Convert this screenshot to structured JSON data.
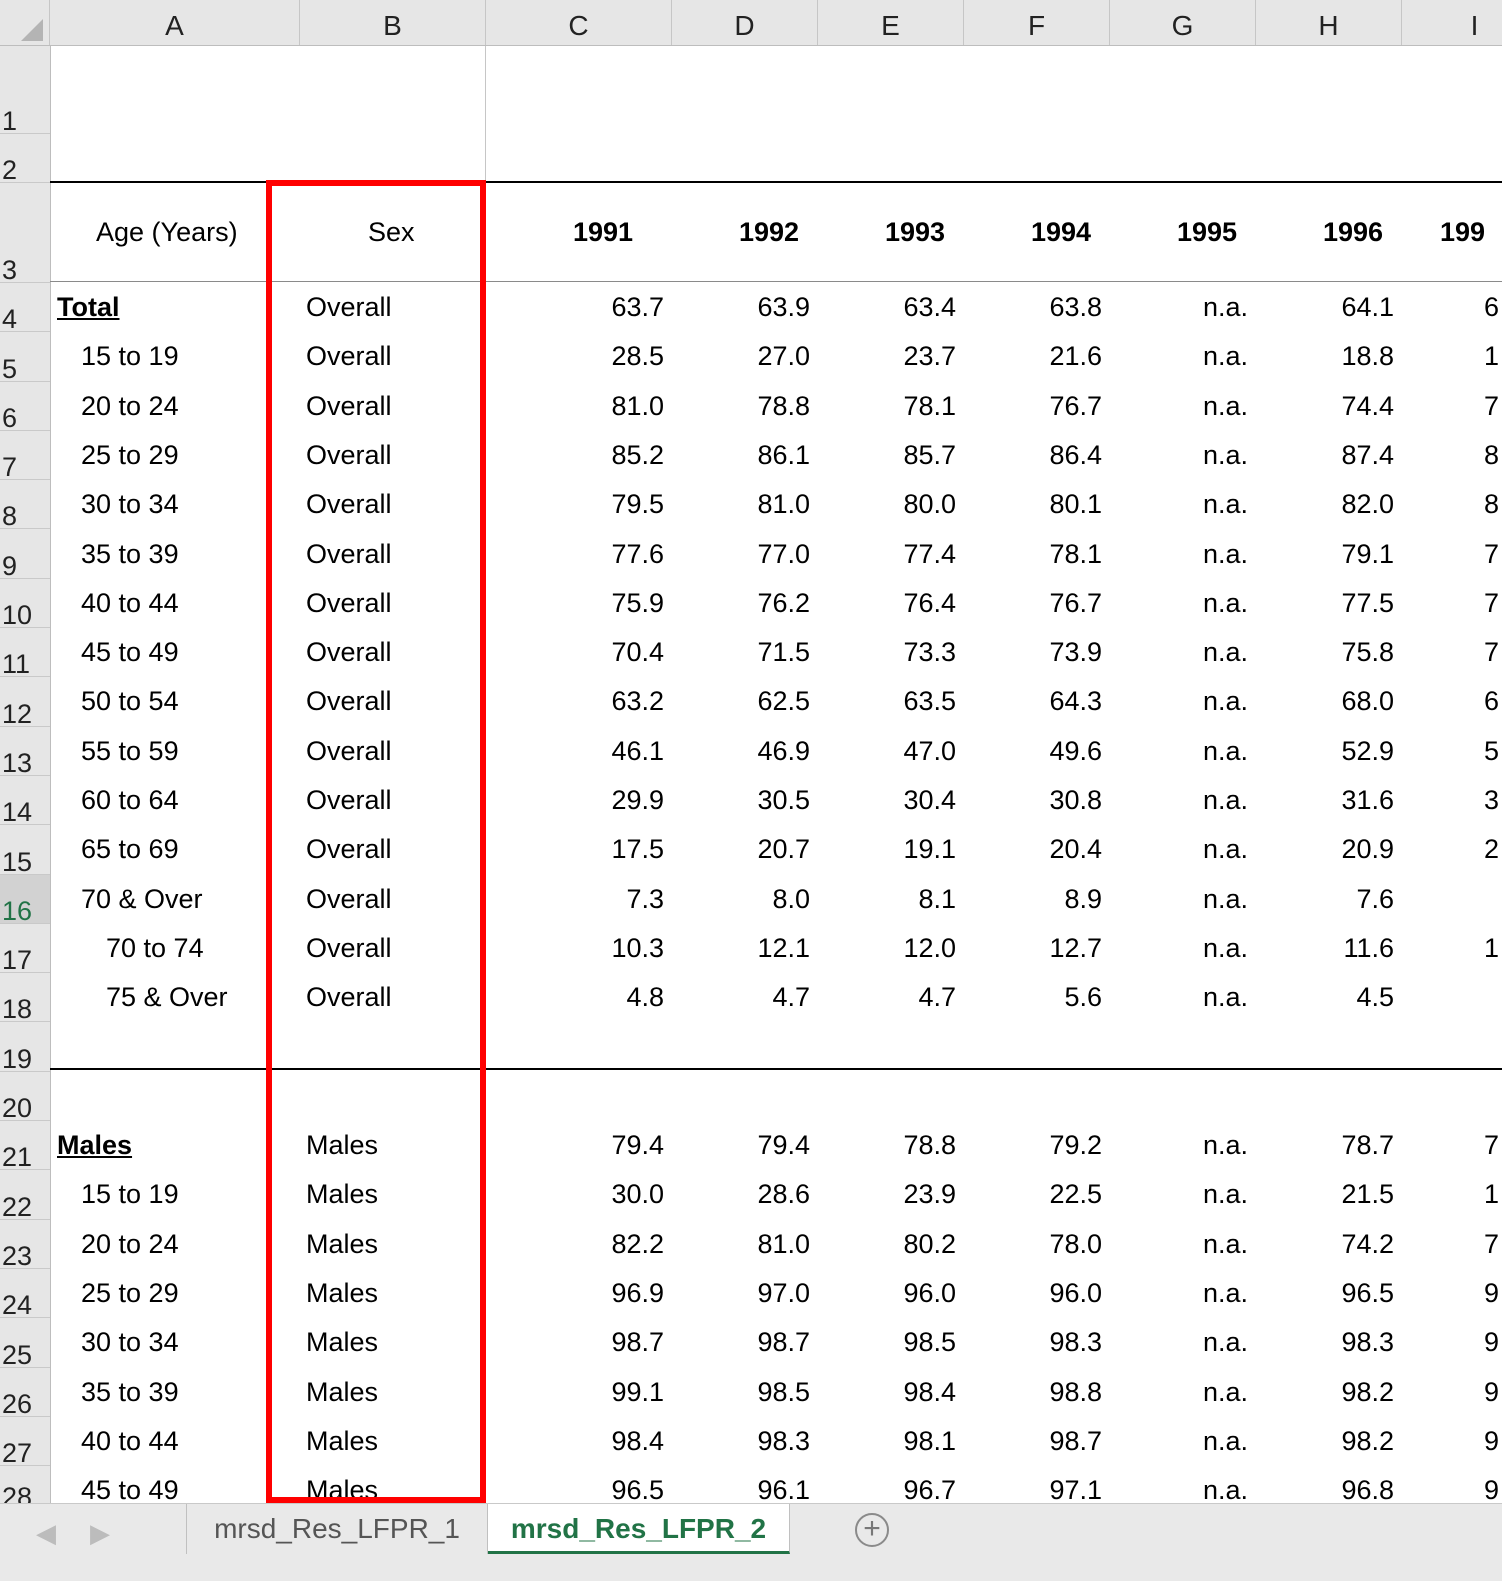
{
  "columns": [
    "A",
    "B",
    "C",
    "D",
    "E",
    "F",
    "G",
    "H",
    "I"
  ],
  "row_numbers": [
    "1",
    "2",
    "3",
    "4",
    "5",
    "6",
    "7",
    "8",
    "9",
    "10",
    "11",
    "12",
    "13",
    "14",
    "15",
    "16",
    "17",
    "18",
    "19",
    "20",
    "21",
    "22",
    "23",
    "24",
    "25",
    "26",
    "27",
    "28"
  ],
  "active_row": "16",
  "header": {
    "age_label": "Age (Years)",
    "sex_label": "Sex",
    "years": [
      "1991",
      "1992",
      "1993",
      "1994",
      "1995",
      "1996",
      "199"
    ]
  },
  "rows": [
    {
      "row": "4",
      "age": "Total",
      "section": true,
      "indent": 0,
      "sex": "Overall",
      "values": [
        "63.7",
        "63.9",
        "63.4",
        "63.8",
        "n.a.",
        "64.1"
      ],
      "i_clip": "6"
    },
    {
      "row": "5",
      "age": "15 to 19",
      "section": false,
      "indent": 1,
      "sex": "Overall",
      "values": [
        "28.5",
        "27.0",
        "23.7",
        "21.6",
        "n.a.",
        "18.8"
      ],
      "i_clip": "1"
    },
    {
      "row": "6",
      "age": "20 to 24",
      "section": false,
      "indent": 1,
      "sex": "Overall",
      "values": [
        "81.0",
        "78.8",
        "78.1",
        "76.7",
        "n.a.",
        "74.4"
      ],
      "i_clip": "7"
    },
    {
      "row": "7",
      "age": "25 to 29",
      "section": false,
      "indent": 1,
      "sex": "Overall",
      "values": [
        "85.2",
        "86.1",
        "85.7",
        "86.4",
        "n.a.",
        "87.4"
      ],
      "i_clip": "8"
    },
    {
      "row": "8",
      "age": "30 to 34",
      "section": false,
      "indent": 1,
      "sex": "Overall",
      "values": [
        "79.5",
        "81.0",
        "80.0",
        "80.1",
        "n.a.",
        "82.0"
      ],
      "i_clip": "8"
    },
    {
      "row": "9",
      "age": "35 to 39",
      "section": false,
      "indent": 1,
      "sex": "Overall",
      "values": [
        "77.6",
        "77.0",
        "77.4",
        "78.1",
        "n.a.",
        "79.1"
      ],
      "i_clip": "7"
    },
    {
      "row": "10",
      "age": "40 to 44",
      "section": false,
      "indent": 1,
      "sex": "Overall",
      "values": [
        "75.9",
        "76.2",
        "76.4",
        "76.7",
        "n.a.",
        "77.5"
      ],
      "i_clip": "7"
    },
    {
      "row": "11",
      "age": "45 to 49",
      "section": false,
      "indent": 1,
      "sex": "Overall",
      "values": [
        "70.4",
        "71.5",
        "73.3",
        "73.9",
        "n.a.",
        "75.8"
      ],
      "i_clip": "7"
    },
    {
      "row": "12",
      "age": "50 to 54",
      "section": false,
      "indent": 1,
      "sex": "Overall",
      "values": [
        "63.2",
        "62.5",
        "63.5",
        "64.3",
        "n.a.",
        "68.0"
      ],
      "i_clip": "6"
    },
    {
      "row": "13",
      "age": "55 to 59",
      "section": false,
      "indent": 1,
      "sex": "Overall",
      "values": [
        "46.1",
        "46.9",
        "47.0",
        "49.6",
        "n.a.",
        "52.9"
      ],
      "i_clip": "5"
    },
    {
      "row": "14",
      "age": "60 to 64",
      "section": false,
      "indent": 1,
      "sex": "Overall",
      "values": [
        "29.9",
        "30.5",
        "30.4",
        "30.8",
        "n.a.",
        "31.6"
      ],
      "i_clip": "3"
    },
    {
      "row": "15",
      "age": "65 to 69",
      "section": false,
      "indent": 1,
      "sex": "Overall",
      "values": [
        "17.5",
        "20.7",
        "19.1",
        "20.4",
        "n.a.",
        "20.9"
      ],
      "i_clip": "2"
    },
    {
      "row": "16",
      "age": "70 & Over",
      "section": false,
      "indent": 1,
      "sex": "Overall",
      "values": [
        "7.3",
        "8.0",
        "8.1",
        "8.9",
        "n.a.",
        "7.6"
      ],
      "i_clip": ""
    },
    {
      "row": "17",
      "age": "70 to 74",
      "section": false,
      "indent": 2,
      "sex": "Overall",
      "values": [
        "10.3",
        "12.1",
        "12.0",
        "12.7",
        "n.a.",
        "11.6"
      ],
      "i_clip": "1"
    },
    {
      "row": "18",
      "age": "75 & Over",
      "section": false,
      "indent": 2,
      "sex": "Overall",
      "values": [
        "4.8",
        "4.7",
        "4.7",
        "5.6",
        "n.a.",
        "4.5"
      ],
      "i_clip": ""
    },
    {
      "row": "21",
      "age": "Males",
      "section": true,
      "indent": 0,
      "sex": "Males",
      "values": [
        "79.4",
        "79.4",
        "78.8",
        "79.2",
        "n.a.",
        "78.7"
      ],
      "i_clip": "7"
    },
    {
      "row": "22",
      "age": "15 to 19",
      "section": false,
      "indent": 1,
      "sex": "Males",
      "values": [
        "30.0",
        "28.6",
        "23.9",
        "22.5",
        "n.a.",
        "21.5"
      ],
      "i_clip": "1"
    },
    {
      "row": "23",
      "age": "20 to 24",
      "section": false,
      "indent": 1,
      "sex": "Males",
      "values": [
        "82.2",
        "81.0",
        "80.2",
        "78.0",
        "n.a.",
        "74.2"
      ],
      "i_clip": "7"
    },
    {
      "row": "24",
      "age": "25 to 29",
      "section": false,
      "indent": 1,
      "sex": "Males",
      "values": [
        "96.9",
        "97.0",
        "96.0",
        "96.0",
        "n.a.",
        "96.5"
      ],
      "i_clip": "9"
    },
    {
      "row": "25",
      "age": "30 to 34",
      "section": false,
      "indent": 1,
      "sex": "Males",
      "values": [
        "98.7",
        "98.7",
        "98.5",
        "98.3",
        "n.a.",
        "98.3"
      ],
      "i_clip": "9"
    },
    {
      "row": "26",
      "age": "35 to 39",
      "section": false,
      "indent": 1,
      "sex": "Males",
      "values": [
        "99.1",
        "98.5",
        "98.4",
        "98.8",
        "n.a.",
        "98.2"
      ],
      "i_clip": "9"
    },
    {
      "row": "27",
      "age": "40 to 44",
      "section": false,
      "indent": 1,
      "sex": "Males",
      "values": [
        "98.4",
        "98.3",
        "98.1",
        "98.7",
        "n.a.",
        "98.2"
      ],
      "i_clip": "9"
    },
    {
      "row": "28",
      "age": "45 to 49",
      "section": false,
      "indent": 1,
      "sex": "Males",
      "values": [
        "96.5",
        "96.1",
        "96.7",
        "97.1",
        "n.a.",
        "96.8"
      ],
      "i_clip": "9"
    }
  ],
  "tabs": [
    {
      "label": "mrsd_Res_LFPR_1",
      "active": false
    },
    {
      "label": "mrsd_Res_LFPR_2",
      "active": true
    }
  ],
  "tab_nav": {
    "prev": "◀",
    "next": "▶",
    "add": "+"
  },
  "colors": {
    "highlight_box": "#ff0000",
    "active_tab": "#217346"
  }
}
